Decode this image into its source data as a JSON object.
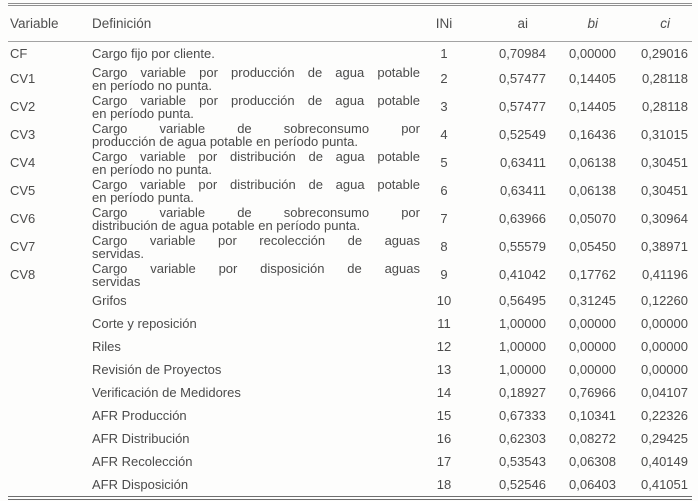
{
  "table": {
    "headers": {
      "variable": "Variable",
      "definition": "Definición",
      "ini": "INi",
      "ai": "ai",
      "bi": "bi",
      "ci": "ci"
    },
    "rows": [
      {
        "variable": "CF",
        "definition": "Cargo fijo por cliente.",
        "ini": "1",
        "ai": "0,70984",
        "bi": "0,00000",
        "ci": "0,29016"
      },
      {
        "variable": "CV1",
        "definition": "Cargo variable por producción de agua potable\nen período no punta.",
        "ini": "2",
        "ai": "0,57477",
        "bi": "0,14405",
        "ci": "0,28118"
      },
      {
        "variable": "CV2",
        "definition": "Cargo variable por producción de agua potable\nen período punta.",
        "ini": "3",
        "ai": "0,57477",
        "bi": "0,14405",
        "ci": "0,28118"
      },
      {
        "variable": "CV3",
        "definition": "Cargo variable de sobreconsumo por\nproducción de agua potable en período punta.",
        "ini": "4",
        "ai": "0,52549",
        "bi": "0,16436",
        "ci": "0,31015"
      },
      {
        "variable": "CV4",
        "definition": "Cargo variable por distribución de agua potable\nen período no punta.",
        "ini": "5",
        "ai": "0,63411",
        "bi": "0,06138",
        "ci": "0,30451"
      },
      {
        "variable": "CV5",
        "definition": "Cargo variable por distribución de agua potable\nen período punta.",
        "ini": "6",
        "ai": "0,63411",
        "bi": "0,06138",
        "ci": "0,30451"
      },
      {
        "variable": "CV6",
        "definition": "Cargo variable de sobreconsumo por\ndistribución de agua potable en período punta.",
        "ini": "7",
        "ai": "0,63966",
        "bi": "0,05070",
        "ci": "0,30964"
      },
      {
        "variable": "CV7",
        "definition": "Cargo variable por recolección de aguas\nservidas.",
        "ini": "8",
        "ai": "0,55579",
        "bi": "0,05450",
        "ci": "0,38971"
      },
      {
        "variable": "CV8",
        "definition": "Cargo variable por disposición de aguas\nservidas",
        "ini": "9",
        "ai": "0,41042",
        "bi": "0,17762",
        "ci": "0,41196"
      },
      {
        "variable": "",
        "definition": "Grifos",
        "ini": "10",
        "ai": "0,56495",
        "bi": "0,31245",
        "ci": "0,12260"
      },
      {
        "variable": "",
        "definition": "Corte y reposición",
        "ini": "11",
        "ai": "1,00000",
        "bi": "0,00000",
        "ci": "0,00000"
      },
      {
        "variable": "",
        "definition": "Riles",
        "ini": "12",
        "ai": "1,00000",
        "bi": "0,00000",
        "ci": "0,00000"
      },
      {
        "variable": "",
        "definition": "Revisión de Proyectos",
        "ini": "13",
        "ai": "1,00000",
        "bi": "0,00000",
        "ci": "0,00000"
      },
      {
        "variable": "",
        "definition": "Verificación de Medidores",
        "ini": "14",
        "ai": "0,18927",
        "bi": "0,76966",
        "ci": "0,04107"
      },
      {
        "variable": "",
        "definition": "AFR Producción",
        "ini": "15",
        "ai": "0,67333",
        "bi": "0,10341",
        "ci": "0,22326"
      },
      {
        "variable": "",
        "definition": "AFR Distribución",
        "ini": "16",
        "ai": "0,62303",
        "bi": "0,08272",
        "ci": "0,29425"
      },
      {
        "variable": "",
        "definition": "AFR Recolección",
        "ini": "17",
        "ai": "0,53543",
        "bi": "0,06308",
        "ci": "0,40149"
      },
      {
        "variable": "",
        "definition": "AFR Disposición",
        "ini": "18",
        "ai": "0,52546",
        "bi": "0,06403",
        "ci": "0,41051"
      }
    ]
  }
}
